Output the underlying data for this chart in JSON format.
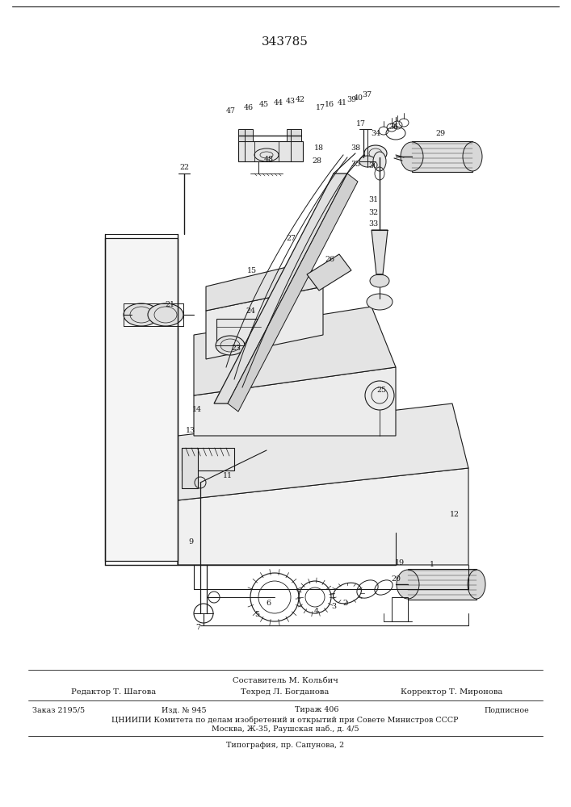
{
  "patent_number": "343785",
  "background_color": "#ffffff",
  "line_color": "#1a1a1a",
  "footer": {
    "composer": "Составитель М. Кольбич",
    "editor": "Редактор Т. Шагова",
    "techred": "Техред Л. Богданова",
    "corrector": "Корректор Т. Миронова",
    "order": "Заказ 2195/5",
    "izd": "Изд. № 945",
    "tirazh": "Тираж 406",
    "podpisnoe": "Подписное",
    "tsniip": "ЦНИИПИ Комитета по делам изобретений и открытий при Совете Министров СССР",
    "address": "Москва, Ж-35, Раушская наб., д. 4/5",
    "typografia": "Типография, пр. Сапунова, 2"
  }
}
